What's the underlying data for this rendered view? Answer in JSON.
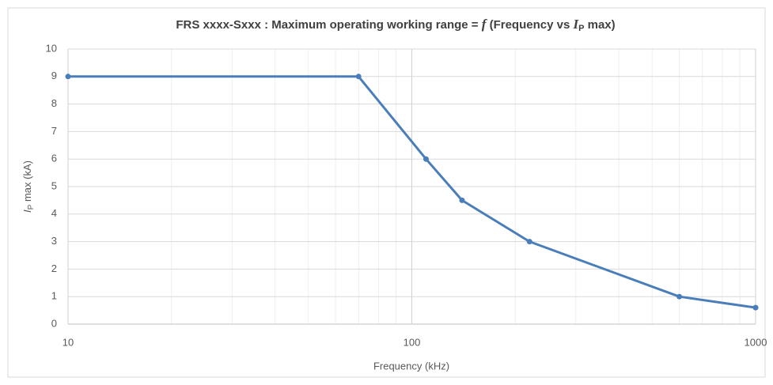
{
  "chart_data": {
    "type": "line",
    "title": [
      "FRS xxxx-Sxxx : Maximum operating working range = ",
      "f",
      " (Frequency vs ",
      "I",
      "P",
      " max)"
    ],
    "xlabel": "Frequency (kHz)",
    "ylabel": [
      "I",
      "P",
      " max (kA)"
    ],
    "x": [
      10,
      70,
      110,
      140,
      220,
      600,
      1000
    ],
    "series": [
      {
        "name": "IP max",
        "color": "#4a7ebb",
        "values": [
          9,
          9,
          6,
          4.5,
          3,
          1,
          0.6
        ]
      }
    ],
    "xlog": true,
    "xlim": [
      10,
      1000
    ],
    "xticks": [
      10,
      100,
      1000
    ],
    "xminorticks": [
      20,
      30,
      40,
      50,
      60,
      70,
      80,
      90,
      200,
      300,
      400,
      500,
      600,
      700,
      800,
      900
    ],
    "ylim": [
      0,
      10
    ],
    "yticks": [
      0,
      1,
      2,
      3,
      4,
      5,
      6,
      7,
      8,
      9,
      10
    ],
    "grid": true,
    "legend": false
  }
}
